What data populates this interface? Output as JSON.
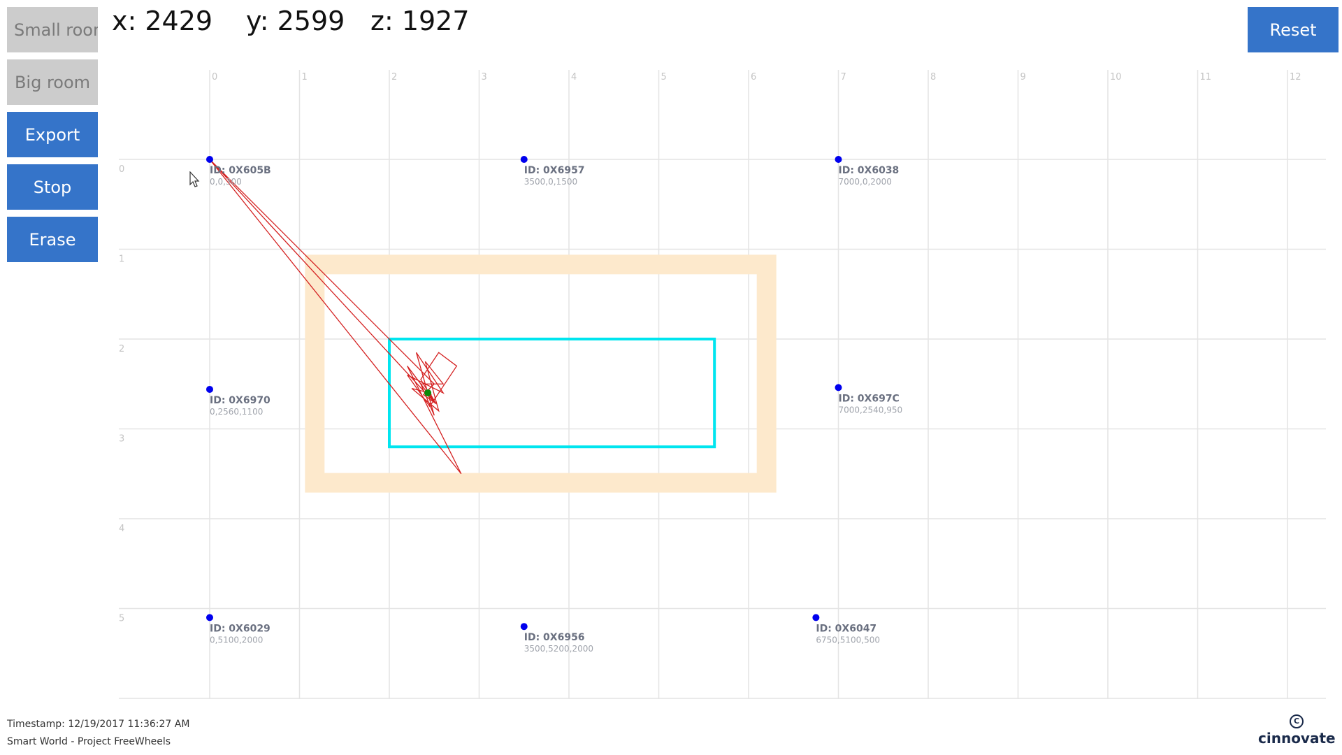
{
  "buttons": {
    "small_room": "Small room",
    "big_room": "Big room",
    "export": "Export",
    "stop": "Stop",
    "erase": "Erase",
    "reset": "Reset"
  },
  "position": {
    "x": "x: 2429",
    "y": "y: 2599",
    "z": "z: 1927"
  },
  "grid": {
    "x_ticks": [
      "0",
      "1",
      "2",
      "3",
      "4",
      "5",
      "6",
      "7",
      "8",
      "9",
      "10",
      "11",
      "12"
    ],
    "y_ticks": [
      "0",
      "1",
      "2",
      "3",
      "4",
      "5"
    ]
  },
  "anchors": [
    {
      "id": "ID: 0X605B",
      "coords": "0,0,300",
      "x": 0,
      "y": 0
    },
    {
      "id": "ID: 0X6957",
      "coords": "3500,0,1500",
      "x": 3.5,
      "y": 0
    },
    {
      "id": "ID: 0X6038",
      "coords": "7000,0,2000",
      "x": 7,
      "y": 0
    },
    {
      "id": "ID: 0X6970",
      "coords": "0,2560,1100",
      "x": 0,
      "y": 2.56
    },
    {
      "id": "ID: 0X697C",
      "coords": "7000,2540,950",
      "x": 7,
      "y": 2.54
    },
    {
      "id": "ID: 0X6029",
      "coords": "0,5100,2000",
      "x": 0,
      "y": 5.1
    },
    {
      "id": "ID: 0X6956",
      "coords": "3500,5200,2000",
      "x": 3.5,
      "y": 5.2
    },
    {
      "id": "ID: 0X6047",
      "coords": "6750,5100,500",
      "x": 6.75,
      "y": 5.1
    }
  ],
  "tag": {
    "x": 2.429,
    "y": 2.599
  },
  "track": [
    [
      0,
      0
    ],
    [
      2.8,
      3.5
    ],
    [
      2.2,
      2.3
    ],
    [
      2.5,
      2.7
    ],
    [
      2.35,
      2.45
    ],
    [
      2.55,
      2.15
    ],
    [
      2.75,
      2.3
    ],
    [
      2.45,
      2.75
    ],
    [
      2.2,
      2.4
    ],
    [
      2.6,
      2.6
    ],
    [
      2.3,
      2.15
    ],
    [
      2.5,
      2.85
    ],
    [
      2.35,
      2.5
    ],
    [
      2.6,
      2.5
    ],
    [
      2.4,
      2.25
    ],
    [
      2.55,
      2.8
    ],
    [
      2.25,
      2.55
    ],
    [
      2.45,
      2.6
    ],
    [
      2.52,
      2.72
    ],
    [
      2.38,
      2.62
    ],
    [
      2.5,
      2.5
    ],
    [
      0,
      0
    ],
    [
      2.45,
      2.65
    ],
    [
      2.5,
      2.7
    ],
    [
      2.42,
      2.58
    ],
    [
      2.47,
      2.62
    ]
  ],
  "colors": {
    "button_primary": "#3574c9",
    "button_disabled": "#cccccc",
    "outer_room": "#fde9cc",
    "inner_room": "#00e5ef",
    "track": "#d42020",
    "anchor": "#0000ee",
    "tag": "#0a8a0a",
    "grid": "#e4e4e4"
  },
  "footer": {
    "timestamp": "Timestamp: 12/19/2017 11:36:27 AM",
    "project": "Smart World - Project FreeWheels",
    "logo_mark": "C",
    "logo": "cinnovate"
  }
}
